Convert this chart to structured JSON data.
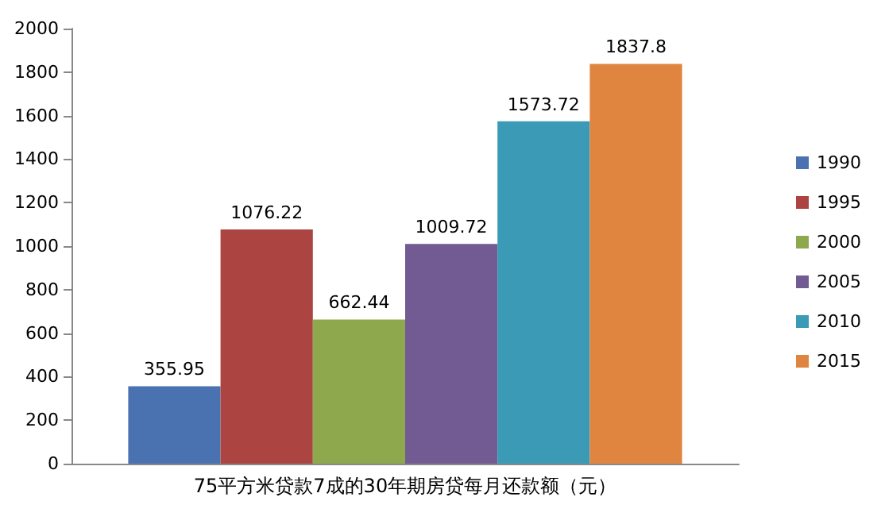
{
  "chart_data": {
    "type": "bar",
    "categories": [
      "75平方米贷款7成的30年期房贷每月还款额（元）"
    ],
    "series": [
      {
        "name": "1990",
        "color": "#4a72b0",
        "values": [
          355.95
        ]
      },
      {
        "name": "1995",
        "color": "#ac4542",
        "values": [
          1076.22
        ]
      },
      {
        "name": "2000",
        "color": "#8ea84d",
        "values": [
          662.44
        ]
      },
      {
        "name": "2005",
        "color": "#725a92",
        "values": [
          1009.72
        ]
      },
      {
        "name": "2010",
        "color": "#3b9ab5",
        "values": [
          1573.72
        ]
      },
      {
        "name": "2015",
        "color": "#e0853f",
        "values": [
          1837.8
        ]
      }
    ],
    "ylim": [
      0,
      2000
    ],
    "yticks": [
      0,
      200,
      400,
      600,
      800,
      1000,
      1200,
      1400,
      1600,
      1800,
      2000
    ],
    "data_labels": true,
    "legend": "right",
    "grid": false
  }
}
